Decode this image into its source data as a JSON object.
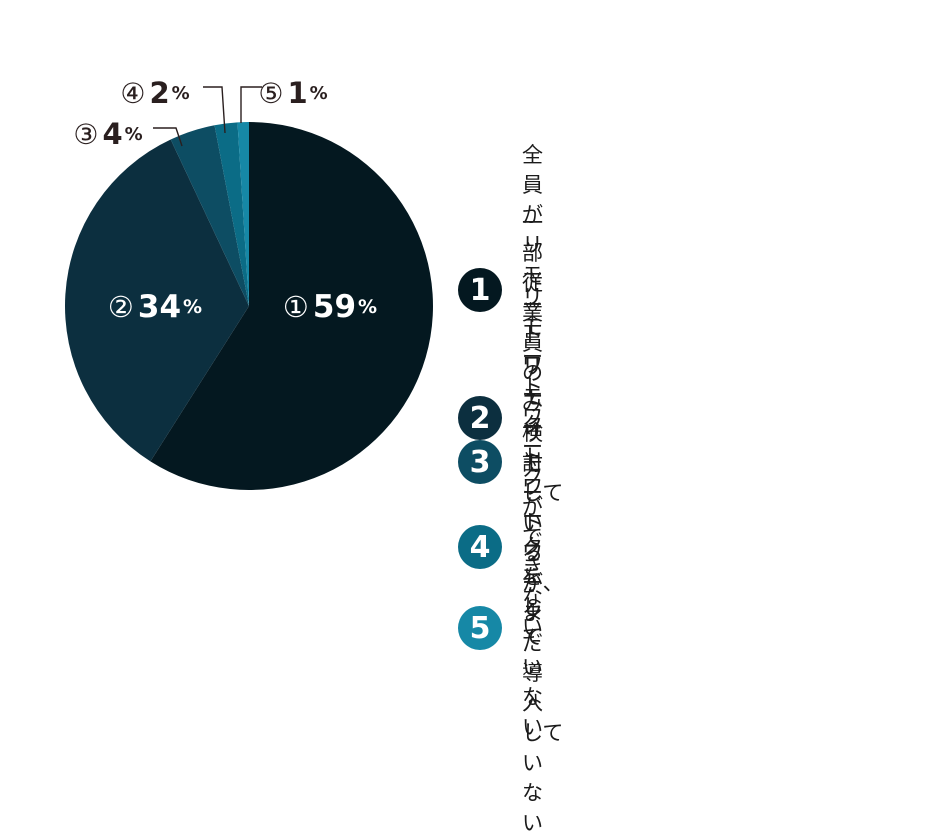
{
  "chart_data": {
    "type": "pie",
    "slices": [
      {
        "marker": "①",
        "value": 59,
        "unit": "%",
        "color": "#041820"
      },
      {
        "marker": "②",
        "value": 34,
        "unit": "%",
        "color": "#0c2f3f"
      },
      {
        "marker": "③",
        "value": 4,
        "unit": "%",
        "color": "#0d4d63"
      },
      {
        "marker": "④",
        "value": 2,
        "unit": "%",
        "color": "#0b6c86"
      },
      {
        "marker": "⑤",
        "value": 1,
        "unit": "%",
        "color": "#1688a6"
      }
    ],
    "legend": [
      {
        "number": "1",
        "label": "全員がリモートワーク"
      },
      {
        "number": "2",
        "label": "一部従業員のみリモートワーク"
      },
      {
        "number": "3",
        "label": "リモートワークができない"
      },
      {
        "number": "4",
        "label": "リモートワークをしていない"
      },
      {
        "number": "5",
        "label": "検討しているが、\nまだ導入していない"
      }
    ],
    "legend_placement": "right"
  }
}
